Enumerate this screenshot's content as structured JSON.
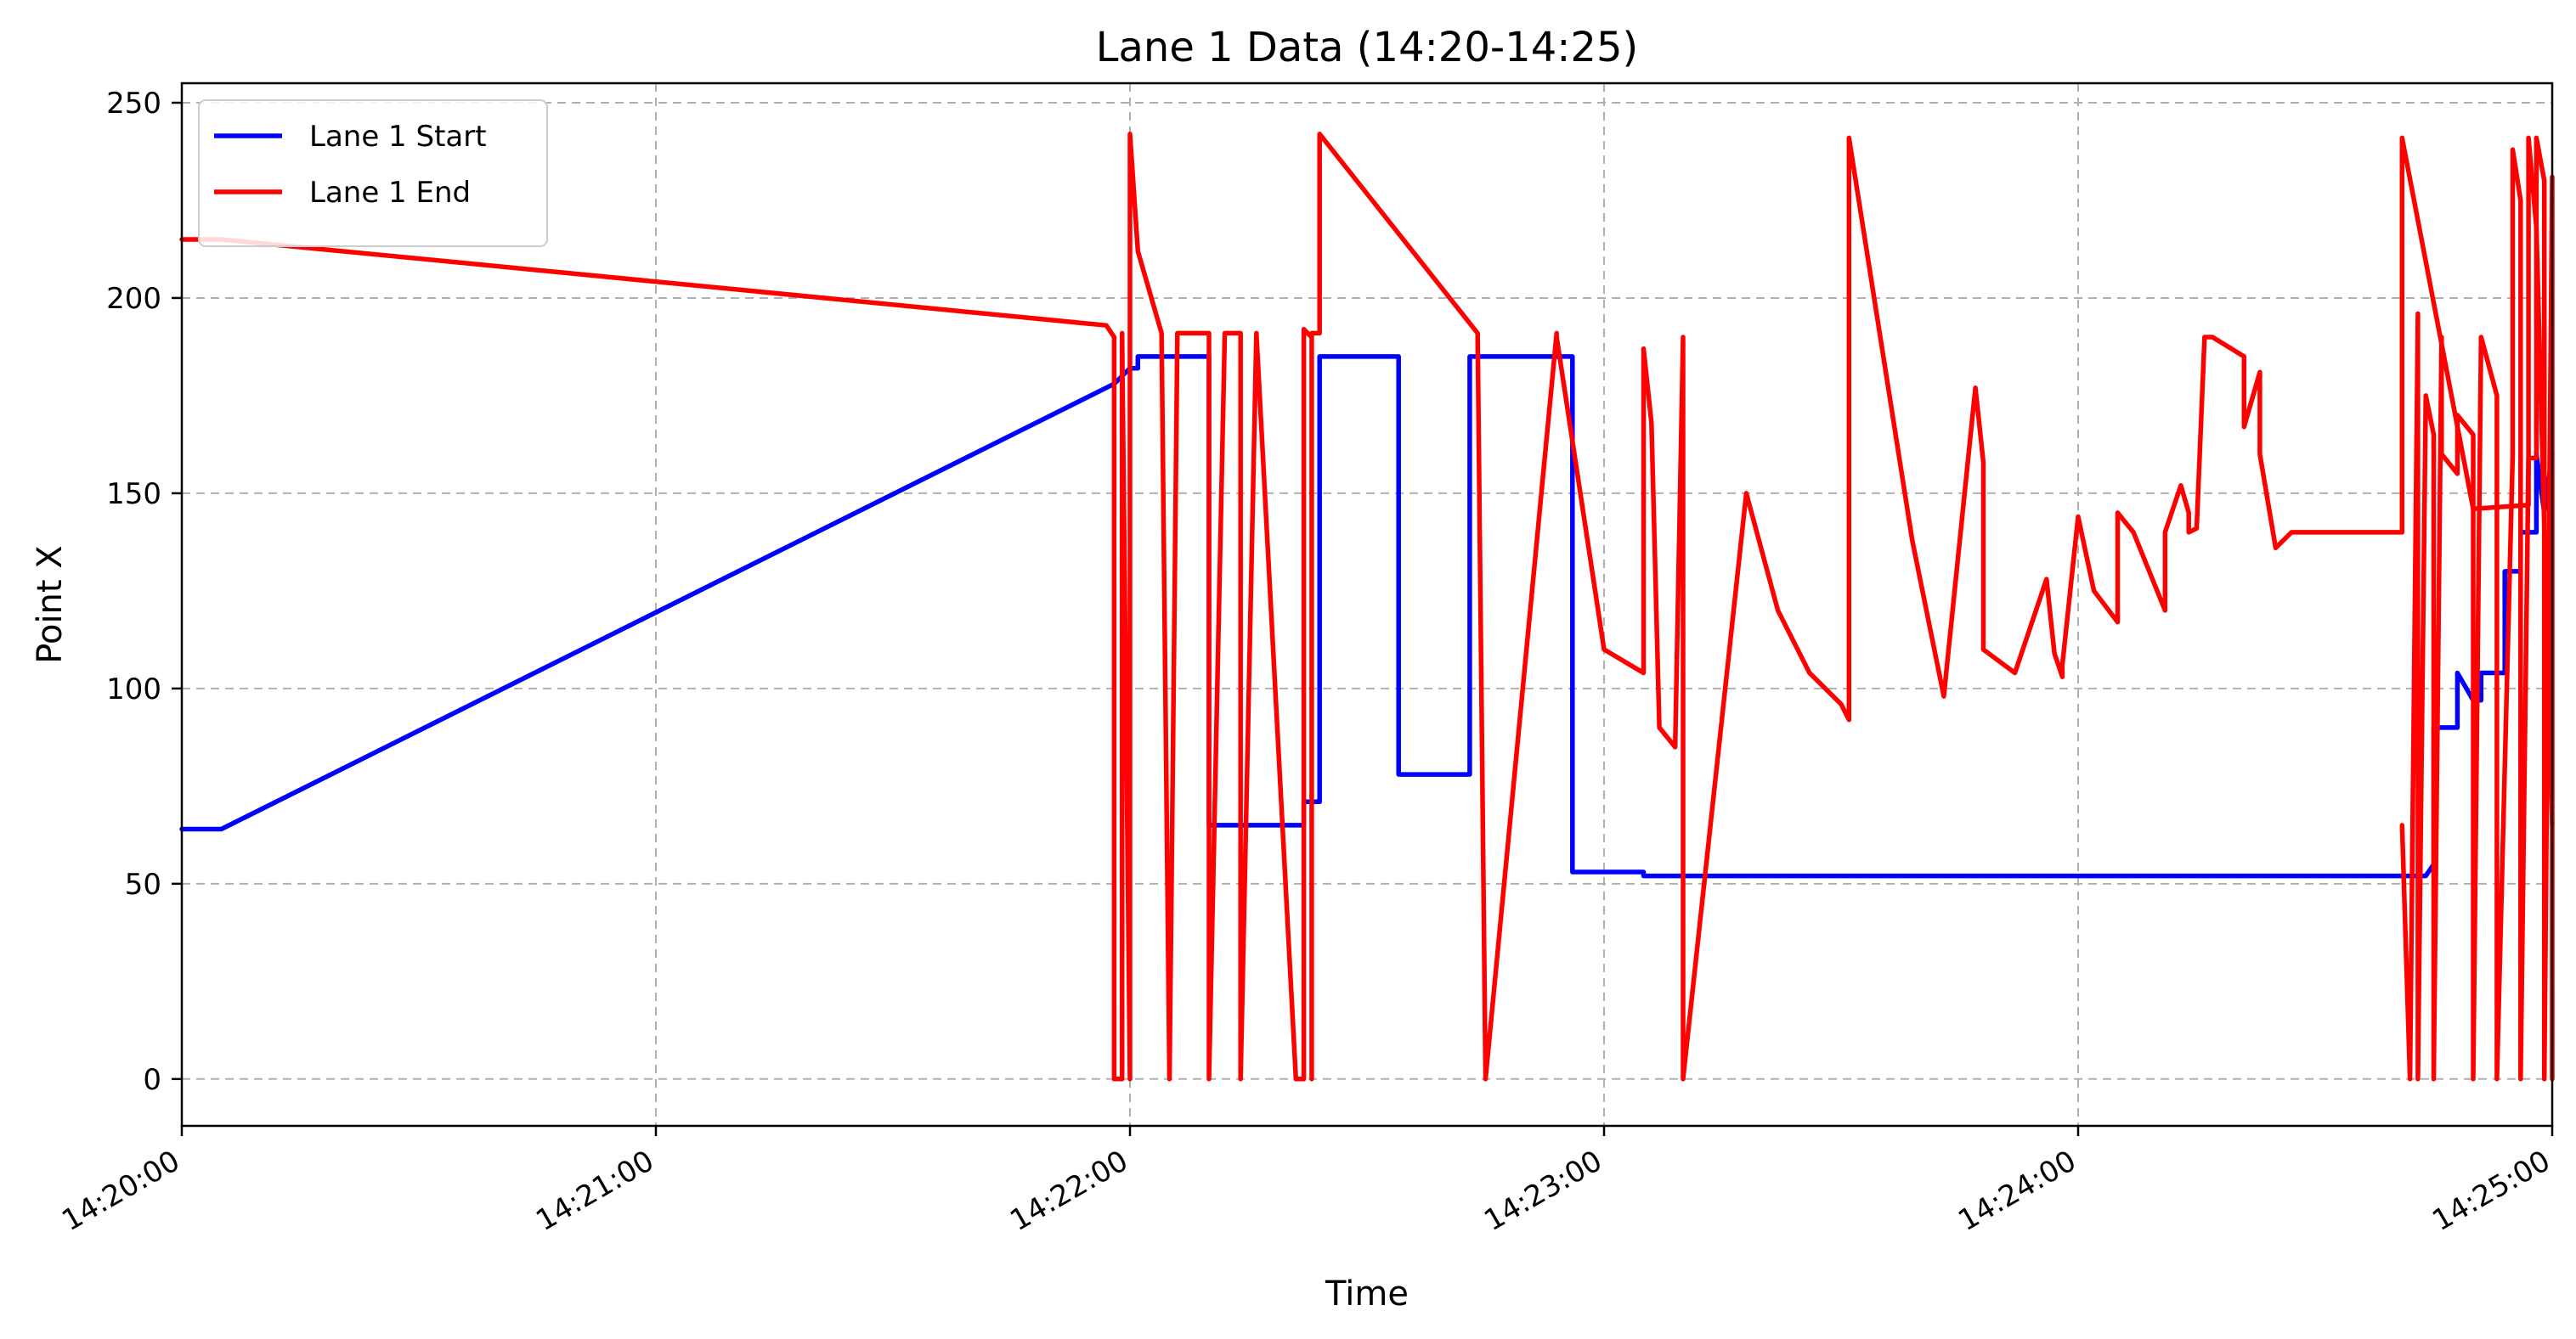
{
  "chart_data": {
    "type": "line",
    "title": "Lane 1 Data (14:20-14:25)",
    "xlabel": "Time",
    "ylabel": "Point X",
    "x_unit": "time (HH:MM:SS)",
    "xlim": [
      "14:20:00",
      "14:25:00"
    ],
    "ylim": [
      -12,
      255
    ],
    "x_ticks": [
      "14:20:00",
      "14:21:00",
      "14:22:00",
      "14:23:00",
      "14:24:00",
      "14:25:00"
    ],
    "y_ticks": [
      0,
      50,
      100,
      150,
      200,
      250
    ],
    "grid": true,
    "legend_position": "top-left",
    "series": [
      {
        "name": "Lane 1 Start",
        "color": "#0000ff",
        "x": [
          "14:20:00",
          "14:20:05",
          "14:21:58",
          "14:22:00",
          "14:22:01",
          "14:22:01",
          "14:22:10",
          "14:22:10",
          "14:22:22",
          "14:22:22",
          "14:22:24",
          "14:22:24",
          "14:22:34",
          "14:22:34",
          "14:22:43",
          "14:22:43",
          "14:22:56",
          "14:22:56",
          "14:23:05",
          "14:23:05",
          "14:24:44",
          "14:24:45",
          "14:24:45",
          "14:24:48",
          "14:24:48",
          "14:24:50",
          "14:24:51",
          "14:24:51",
          "14:24:54",
          "14:24:54",
          "14:24:56",
          "14:24:56",
          "14:24:58",
          "14:24:58",
          "14:24:59",
          "14:25:00"
        ],
        "values": [
          64,
          64,
          178,
          182,
          182,
          185,
          185,
          65,
          65,
          71,
          71,
          185,
          185,
          78,
          78,
          185,
          185,
          53,
          53,
          52,
          52,
          55,
          90,
          90,
          104,
          97,
          97,
          104,
          104,
          130,
          130,
          140,
          140,
          160,
          145,
          160
        ]
      },
      {
        "name": "Lane 1 End",
        "color": "#ff0000",
        "x": [
          "14:20:00",
          "14:20:05",
          "14:21:57",
          "14:21:58",
          "14:21:58",
          "14:21:59",
          "14:21:59",
          "14:21:59",
          "14:22:00",
          "14:22:00",
          "14:22:01",
          "14:22:04",
          "14:22:04",
          "14:22:04",
          "14:22:05",
          "14:22:06",
          "14:22:07",
          "14:22:10",
          "14:22:10",
          "14:22:12",
          "14:22:14",
          "14:22:14",
          "14:22:16",
          "14:22:16",
          "14:22:21",
          "14:22:22",
          "14:22:22",
          "14:22:23",
          "14:22:23",
          "14:22:23",
          "14:22:24",
          "14:22:24",
          "14:22:44",
          "14:22:44",
          "14:22:45",
          "14:22:45",
          "14:22:54",
          "14:22:54",
          "14:23:00",
          "14:23:05",
          "14:23:05",
          "14:23:06",
          "14:23:07",
          "14:23:09",
          "14:23:10",
          "14:23:10",
          "14:23:18",
          "14:23:22",
          "14:23:26",
          "14:23:30",
          "14:23:31",
          "14:23:31",
          "14:23:39",
          "14:23:43",
          "14:23:47",
          "14:23:48",
          "14:23:48",
          "14:23:52",
          "14:23:56",
          "14:23:57",
          "14:23:58",
          "14:23:58",
          "14:24:00",
          "14:24:02",
          "14:24:05",
          "14:24:05",
          "14:24:07",
          "14:24:09",
          "14:24:11",
          "14:24:11",
          "14:24:13",
          "14:24:14",
          "14:24:14",
          "14:24:15",
          "14:24:16",
          "14:24:17",
          "14:24:21",
          "14:24:21",
          "14:24:23",
          "14:24:23",
          "14:24:25",
          "14:24:27",
          "14:24:27",
          "14:24:41",
          "14:24:41",
          "14:24:50",
          "14:24:57",
          "14:24:57",
          "14:24:58",
          "14:25:00"
        ],
        "values": [
          215,
          215,
          193,
          190,
          0,
          0,
          191,
          191,
          0,
          242,
          212,
          191,
          191,
          191,
          0,
          191,
          191,
          191,
          0,
          191,
          191,
          0,
          191,
          191,
          0,
          0,
          192,
          190,
          0,
          191,
          191,
          242,
          191,
          191,
          0,
          0,
          191,
          190,
          110,
          104,
          187,
          168,
          90,
          85,
          190,
          0,
          150,
          120,
          104,
          96,
          92,
          241,
          138,
          98,
          177,
          158,
          110,
          104,
          128,
          109,
          103,
          106,
          144,
          125,
          117,
          145,
          140,
          130,
          120,
          140,
          152,
          145,
          140,
          141,
          190,
          190,
          185,
          167,
          181,
          160,
          136,
          140,
          140,
          140,
          241,
          146,
          147,
          241,
          218,
          65
        ]
      },
      {
        "name": "",
        "color": "#ff0000",
        "x": [
          "14:24:41",
          "14:24:42",
          "14:24:43",
          "14:24:43",
          "14:24:44",
          "14:24:45",
          "14:24:45",
          "14:24:46",
          "14:24:46",
          "14:24:48",
          "14:24:48",
          "14:24:50",
          "14:24:50",
          "14:24:51",
          "14:24:53",
          "14:24:53",
          "14:24:55",
          "14:24:55",
          "14:24:56",
          "14:24:56",
          "14:24:57",
          "14:24:58",
          "14:24:58",
          "14:24:59",
          "14:24:59",
          "14:25:00",
          "14:25:00"
        ],
        "values": [
          65,
          0,
          196,
          0,
          175,
          165,
          0,
          190,
          160,
          155,
          170,
          165,
          0,
          190,
          175,
          0,
          160,
          238,
          225,
          0,
          159,
          159,
          241,
          230,
          0,
          231,
          0
        ]
      }
    ]
  }
}
